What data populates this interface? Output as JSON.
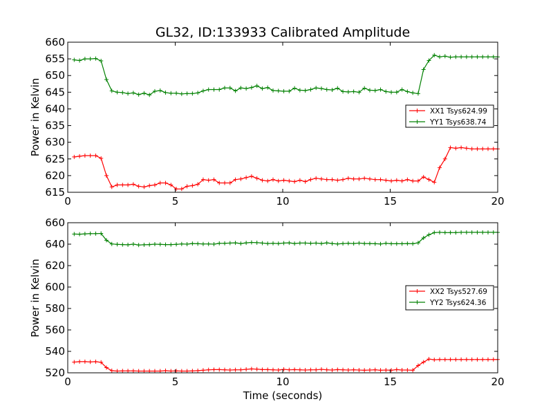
{
  "chart_data": [
    {
      "type": "line",
      "title": "GL32, ID:133933 Calibrated Amplitude",
      "xlabel": "",
      "ylabel": "Power in Kelvin",
      "xlim": [
        0,
        20
      ],
      "ylim": [
        615,
        660
      ],
      "xticks": [
        0,
        5,
        10,
        15,
        20
      ],
      "yticks": [
        615,
        620,
        625,
        630,
        635,
        640,
        645,
        650,
        655,
        660
      ],
      "legend_position": "right",
      "grid": false,
      "x": [
        0.3,
        0.55,
        0.8,
        1.05,
        1.3,
        1.55,
        1.8,
        2.05,
        2.3,
        2.55,
        2.8,
        3.05,
        3.3,
        3.55,
        3.8,
        4.05,
        4.3,
        4.55,
        4.8,
        5.05,
        5.3,
        5.55,
        5.8,
        6.05,
        6.3,
        6.55,
        6.8,
        7.05,
        7.3,
        7.55,
        7.8,
        8.05,
        8.3,
        8.55,
        8.8,
        9.05,
        9.3,
        9.55,
        9.8,
        10.05,
        10.3,
        10.55,
        10.8,
        11.05,
        11.3,
        11.55,
        11.8,
        12.05,
        12.3,
        12.55,
        12.8,
        13.05,
        13.3,
        13.55,
        13.8,
        14.05,
        14.3,
        14.55,
        14.8,
        15.05,
        15.3,
        15.55,
        15.8,
        16.05,
        16.3,
        16.55,
        16.8,
        17.05,
        17.3,
        17.55,
        17.8,
        18.05,
        18.3,
        18.55,
        18.8,
        19.05,
        19.3,
        19.55,
        19.8,
        20.0
      ],
      "series": [
        {
          "name": "XX1 Tsys624.99",
          "color": "#ff0000",
          "values": [
            625.6,
            625.8,
            626.0,
            626.0,
            626.0,
            625.2,
            620.0,
            616.6,
            617.2,
            617.2,
            617.2,
            617.4,
            616.8,
            616.6,
            617.0,
            617.2,
            617.8,
            617.8,
            617.2,
            616.0,
            616.0,
            616.8,
            617.0,
            617.4,
            618.8,
            618.6,
            618.8,
            617.8,
            617.8,
            617.8,
            618.8,
            619.0,
            619.4,
            619.8,
            619.2,
            618.6,
            618.4,
            618.8,
            618.4,
            618.6,
            618.4,
            618.2,
            618.6,
            618.2,
            618.8,
            619.2,
            619.0,
            618.8,
            618.8,
            618.6,
            618.8,
            619.2,
            619.0,
            619.0,
            619.2,
            619.0,
            618.8,
            618.8,
            618.6,
            618.4,
            618.6,
            618.4,
            618.8,
            618.4,
            618.4,
            619.6,
            618.8,
            618.0,
            622.4,
            625.0,
            628.4,
            628.2,
            628.4,
            628.2,
            628.0,
            628.0,
            628.0,
            628.0,
            628.0,
            628.0
          ],
          "x_range": [
            0.3,
            20.0
          ]
        },
        {
          "name": "YY1 Tsys638.74",
          "color": "#008000",
          "values": [
            654.7,
            654.5,
            655.0,
            655.0,
            655.1,
            654.4,
            648.8,
            645.4,
            645.0,
            644.9,
            644.6,
            644.8,
            644.3,
            644.7,
            644.2,
            645.3,
            645.5,
            644.9,
            644.7,
            644.7,
            644.5,
            644.6,
            644.6,
            644.8,
            645.4,
            645.8,
            645.8,
            645.8,
            646.3,
            646.3,
            645.4,
            646.3,
            646.1,
            646.4,
            646.9,
            646.1,
            646.4,
            645.5,
            645.4,
            645.3,
            645.3,
            646.2,
            645.6,
            645.5,
            645.8,
            646.3,
            646.1,
            645.8,
            645.7,
            646.2,
            645.2,
            645.1,
            645.2,
            645.0,
            646.2,
            645.6,
            645.5,
            645.8,
            645.2,
            645.0,
            645.0,
            645.8,
            645.2,
            644.8,
            644.6,
            651.8,
            654.5,
            656.1,
            655.6,
            655.8,
            655.5,
            655.6,
            655.6,
            655.6,
            655.6,
            655.6,
            655.6,
            655.6,
            655.6,
            655.6
          ],
          "x_range": [
            0.3,
            20.0
          ]
        }
      ]
    },
    {
      "type": "line",
      "title": "",
      "xlabel": "Time (seconds)",
      "ylabel": "Power in Kelvin",
      "xlim": [
        0,
        20
      ],
      "ylim": [
        520,
        660
      ],
      "xticks": [
        0,
        5,
        10,
        15,
        20
      ],
      "yticks": [
        520,
        540,
        560,
        580,
        600,
        620,
        640,
        660
      ],
      "legend_position": "right",
      "grid": false,
      "series": [
        {
          "name": "XX2 Tsys527.69",
          "color": "#ff0000",
          "values": [
            530.0,
            530.4,
            530.4,
            530.2,
            530.4,
            529.8,
            524.8,
            522.0,
            521.6,
            521.8,
            521.8,
            521.8,
            521.6,
            521.6,
            521.6,
            521.6,
            521.6,
            522.0,
            521.6,
            521.8,
            521.6,
            521.6,
            521.8,
            522.0,
            522.4,
            522.8,
            523.0,
            523.0,
            522.8,
            522.6,
            522.8,
            522.8,
            523.2,
            523.6,
            523.4,
            523.0,
            523.0,
            522.8,
            522.6,
            523.2,
            522.8,
            523.0,
            522.8,
            522.6,
            522.8,
            522.8,
            523.2,
            522.8,
            522.6,
            523.0,
            522.8,
            522.6,
            522.8,
            522.6,
            522.4,
            522.6,
            522.8,
            522.4,
            522.6,
            522.4,
            523.0,
            522.6,
            522.6,
            522.4,
            526.8,
            530.0,
            532.8,
            532.2,
            532.4,
            532.4,
            532.4,
            532.4,
            532.4,
            532.4,
            532.4,
            532.4,
            532.4,
            532.4,
            532.4,
            532.4
          ],
          "x_range": [
            0.3,
            20.0
          ]
        },
        {
          "name": "YY2 Tsys624.36",
          "color": "#008000",
          "values": [
            649.4,
            649.3,
            649.6,
            649.8,
            649.8,
            650.0,
            643.6,
            640.2,
            639.8,
            639.6,
            639.4,
            640.0,
            639.2,
            639.4,
            639.6,
            640.0,
            639.8,
            639.6,
            639.6,
            639.8,
            640.2,
            640.0,
            640.6,
            640.4,
            640.2,
            640.2,
            640.0,
            640.8,
            640.8,
            641.0,
            641.2,
            640.6,
            641.2,
            641.6,
            641.4,
            641.0,
            640.6,
            640.8,
            640.6,
            641.0,
            641.2,
            640.6,
            641.0,
            641.0,
            640.8,
            641.0,
            640.6,
            641.2,
            640.6,
            640.2,
            640.6,
            640.8,
            640.6,
            641.0,
            640.6,
            640.6,
            640.4,
            640.2,
            640.8,
            640.4,
            640.4,
            640.4,
            640.6,
            640.4,
            641.2,
            645.8,
            648.8,
            650.8,
            651.0,
            650.8,
            650.8,
            650.8,
            651.0,
            651.0,
            651.0,
            651.0,
            651.0,
            651.0,
            651.0,
            651.0
          ],
          "x_range": [
            0.3,
            20.0
          ]
        }
      ]
    }
  ]
}
